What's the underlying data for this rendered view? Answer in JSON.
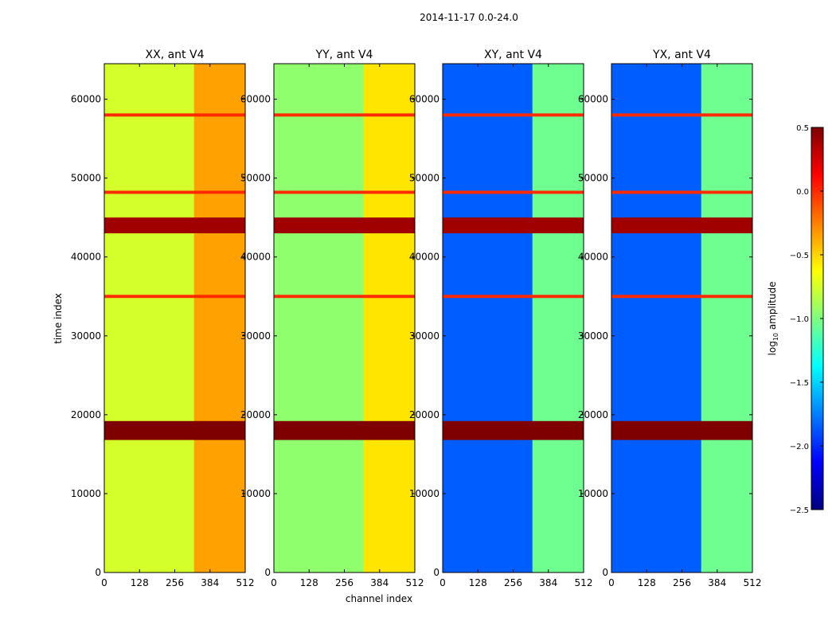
{
  "figure": {
    "suptitle": "2014-11-17 0.0-24.0"
  },
  "chart_data": {
    "type": "heatmap",
    "title": "2014-11-17 0.0-24.0",
    "xlabel": "channel index",
    "ylabel": "time index",
    "xlim": [
      0,
      512
    ],
    "ylim": [
      0,
      64500
    ],
    "xticks": [
      0,
      128,
      256,
      384,
      512
    ],
    "yticks": [
      0,
      10000,
      20000,
      30000,
      40000,
      50000,
      60000
    ],
    "panels": [
      {
        "title": "XX, ant V4",
        "base_level": -0.75,
        "rfi_level": -0.35
      },
      {
        "title": "YY, ant V4",
        "base_level": -0.95,
        "rfi_level": -0.55
      },
      {
        "title": "XY, ant V4",
        "base_level": -1.85,
        "rfi_level": -1.05
      },
      {
        "title": "YX, ant V4",
        "base_level": -1.85,
        "rfi_level": -1.05
      }
    ],
    "rfi_channel_range": [
      326,
      512
    ],
    "bad_time_rows": [
      {
        "t_start": 16800,
        "t_end": 19200,
        "level": 0.5
      },
      {
        "t_start": 43000,
        "t_end": 45000,
        "level": 0.4
      },
      {
        "t_start": 34800,
        "t_end": 35200,
        "level": 0.0
      },
      {
        "t_start": 57800,
        "t_end": 58200,
        "level": 0.0
      },
      {
        "t_start": 48000,
        "t_end": 48400,
        "level": 0.0
      }
    ],
    "colorbar": {
      "label": "log10 amplitude",
      "label_main": "log",
      "label_sub": "10",
      "label_rest": " amplitude",
      "vmin": -2.5,
      "vmax": 0.5,
      "ticks": [
        "0.5",
        "0.0",
        "−0.5",
        "−1.0",
        "−1.5",
        "−2.0",
        "−2.5"
      ],
      "tick_values": [
        0.5,
        0.0,
        -0.5,
        -1.0,
        -1.5,
        -2.0,
        -2.5
      ],
      "colormap": [
        "#00007f",
        "#0000ff",
        "#007fff",
        "#00ffff",
        "#7fff7f",
        "#ffff00",
        "#ff7f00",
        "#ff0000",
        "#7f0000"
      ]
    }
  }
}
